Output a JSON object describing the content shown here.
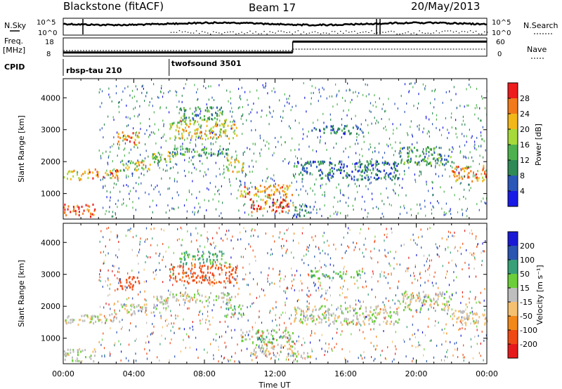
{
  "header": {
    "station": "Blackstone (fitACF)",
    "beam": "Beam 17",
    "date": "20/May/2013"
  },
  "panels": {
    "nsky_label": "N.Sky",
    "nsearch_label": "N.Search",
    "noise_ticks": [
      "10^5",
      "10^0"
    ],
    "freq_label": "Freq.",
    "freq_unit": "[MHz]",
    "freq_ticks": [
      "18",
      "8"
    ],
    "nave_label": "Nave",
    "nave_ticks": [
      "60",
      "0"
    ],
    "cpid_label": "CPID",
    "cpid_segments": [
      {
        "name": "rbsp-tau 210",
        "start": 0
      },
      {
        "name": "twofsound 3501",
        "start": 6
      }
    ]
  },
  "axes": {
    "ylabel": "Slant Range [km]",
    "xlabel": "Time UT",
    "x_ticks": [
      "00:00",
      "04:00",
      "08:00",
      "12:00",
      "16:00",
      "20:00",
      "00:00"
    ],
    "y_ticks": [
      "4000",
      "3000",
      "2000",
      "1000"
    ]
  },
  "colorbars": {
    "power_label": "Power [dB]",
    "power_ticks": [
      "28",
      "24",
      "20",
      "16",
      "12",
      "8",
      "4"
    ],
    "velocity_label": "Velocity [m s⁻¹]",
    "velocity_ticks": [
      "200",
      "100",
      "50",
      "15",
      "-15",
      "-50",
      "-100",
      "-200"
    ]
  },
  "chart_data": {
    "type": "heatmap",
    "x_unit": "hours UT",
    "xlim": [
      0,
      24
    ],
    "ylim": [
      200,
      4600
    ],
    "y_unit": "km",
    "power_bins": [
      0,
      4,
      8,
      12,
      16,
      20,
      24,
      28,
      32
    ],
    "power_colors": [
      "#1a1ae6",
      "#2b57b8",
      "#2f8a55",
      "#4db24d",
      "#a6d93a",
      "#f2b81a",
      "#f27a1a",
      "#ee1c1c"
    ],
    "velocity_bins": [
      -250,
      -200,
      -100,
      -50,
      -15,
      15,
      50,
      100,
      200,
      250
    ],
    "velocity_colors": [
      "#e61a1a",
      "#f04a14",
      "#f2881a",
      "#f5c070",
      "#bebebe",
      "#6ccf3a",
      "#38a078",
      "#2a55b0",
      "#1a1ad6"
    ],
    "freq_mhz": [
      {
        "start": 0,
        "end": 13,
        "value": 10
      },
      {
        "start": 13,
        "end": 24,
        "value": 16
      }
    ],
    "regions": [
      {
        "t0": 0.0,
        "t1": 1.8,
        "r0": 300,
        "r1": 700,
        "power": 28,
        "velocity": 0
      },
      {
        "t0": 0.0,
        "t1": 1.2,
        "r0": 1450,
        "r1": 1750,
        "power": 20,
        "velocity": 0
      },
      {
        "t0": 1.2,
        "t1": 3.2,
        "r0": 1500,
        "r1": 1800,
        "power": 24,
        "velocity": 0
      },
      {
        "t0": 3.2,
        "t1": 5.0,
        "r0": 1750,
        "r1": 2100,
        "power": 20,
        "velocity": -5
      },
      {
        "t0": 5.0,
        "t1": 6.2,
        "r0": 1950,
        "r1": 2350,
        "power": 16,
        "velocity": 5
      },
      {
        "t0": 3.0,
        "t1": 4.3,
        "r0": 2550,
        "r1": 2950,
        "power": 24,
        "velocity": -150
      },
      {
        "t0": 6.0,
        "t1": 9.5,
        "r0": 2150,
        "r1": 2450,
        "power": 12,
        "velocity": 0
      },
      {
        "t0": 6.0,
        "t1": 9.8,
        "r0": 2750,
        "r1": 3350,
        "power": 20,
        "velocity": -120
      },
      {
        "t0": 6.5,
        "t1": 9.0,
        "r0": 3350,
        "r1": 3750,
        "power": 12,
        "velocity": 60
      },
      {
        "t0": 9.2,
        "t1": 10.2,
        "r0": 1700,
        "r1": 2150,
        "power": 20,
        "velocity": 30
      },
      {
        "t0": 10.0,
        "t1": 13.0,
        "r0": 900,
        "r1": 1300,
        "power": 24,
        "velocity": 30
      },
      {
        "t0": 10.5,
        "t1": 13.0,
        "r0": 450,
        "r1": 850,
        "power": 28,
        "velocity": -10
      },
      {
        "t0": 13.0,
        "t1": 14.0,
        "r0": 300,
        "r1": 650,
        "power": 8,
        "velocity": 0
      },
      {
        "t0": 13.0,
        "t1": 19.0,
        "r0": 1450,
        "r1": 2050,
        "power": 8,
        "velocity": 0
      },
      {
        "t0": 14.0,
        "t1": 17.0,
        "r0": 2900,
        "r1": 3150,
        "power": 8,
        "velocity": 40
      },
      {
        "t0": 19.0,
        "t1": 22.0,
        "r0": 1900,
        "r1": 2500,
        "power": 12,
        "velocity": 0
      },
      {
        "t0": 22.0,
        "t1": 24.0,
        "r0": 1400,
        "r1": 1900,
        "power": 24,
        "velocity": -10
      }
    ]
  }
}
